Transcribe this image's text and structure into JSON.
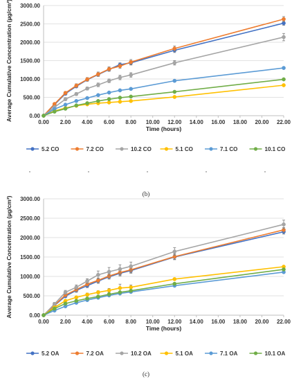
{
  "chart_data": [
    {
      "type": "line",
      "panel_label": "(b)",
      "xlabel": "Time (hours)",
      "ylabel": "Average Cumulative Concentration (µg/cm²)",
      "xlim": [
        0,
        22
      ],
      "ylim": [
        0,
        3000
      ],
      "x_ticks": [
        "0.00",
        "2.00",
        "4.00",
        "6.00",
        "8.00",
        "10.00",
        "12.00",
        "14.00",
        "16.00",
        "18.00",
        "20.00",
        "22.00"
      ],
      "y_ticks": [
        "0.00",
        "500.00",
        "1000.00",
        "1500.00",
        "2000.00",
        "2500.00",
        "3000.00"
      ],
      "grid": "horizontal",
      "legend_position": "bottom",
      "x": [
        0,
        1,
        2,
        3,
        4,
        5,
        6,
        7,
        8,
        12,
        22
      ],
      "series": [
        {
          "name": "5.2 CO",
          "color": "#4472c4",
          "values": [
            0,
            300,
            600,
            800,
            980,
            1120,
            1260,
            1390,
            1440,
            1780,
            2520
          ],
          "errors": [
            0,
            30,
            40,
            40,
            40,
            50,
            50,
            50,
            60,
            60,
            60
          ]
        },
        {
          "name": "7.2 CO",
          "color": "#ed7d31",
          "values": [
            0,
            320,
            620,
            820,
            990,
            1130,
            1270,
            1350,
            1460,
            1830,
            2630
          ],
          "errors": [
            0,
            30,
            40,
            50,
            50,
            60,
            60,
            60,
            70,
            70,
            70
          ]
        },
        {
          "name": "10.2 CO",
          "color": "#a5a5a5",
          "values": [
            0,
            230,
            450,
            590,
            740,
            840,
            950,
            1040,
            1110,
            1440,
            2140
          ],
          "errors": [
            0,
            30,
            40,
            40,
            40,
            50,
            50,
            60,
            60,
            60,
            100
          ]
        },
        {
          "name": "5.1 CO",
          "color": "#ffc000",
          "values": [
            0,
            130,
            210,
            270,
            310,
            340,
            360,
            380,
            400,
            510,
            830
          ],
          "errors": [
            0,
            15,
            20,
            20,
            20,
            20,
            20,
            20,
            20,
            20,
            20
          ]
        },
        {
          "name": "7.1 CO",
          "color": "#5b9bd5",
          "values": [
            0,
            180,
            300,
            400,
            480,
            560,
            630,
            690,
            730,
            950,
            1300
          ],
          "errors": [
            0,
            20,
            20,
            20,
            20,
            30,
            30,
            30,
            30,
            30,
            30
          ]
        },
        {
          "name": "10.1 CO",
          "color": "#70ad47",
          "values": [
            0,
            110,
            190,
            280,
            340,
            400,
            450,
            490,
            520,
            650,
            990
          ],
          "errors": [
            0,
            15,
            15,
            20,
            20,
            20,
            20,
            20,
            20,
            20,
            20
          ]
        }
      ]
    },
    {
      "type": "line",
      "panel_label": "(c)",
      "xlabel": "Time (hours)",
      "ylabel": "Average Cumulative Concentration (µg/cm²)",
      "xlim": [
        0,
        22
      ],
      "ylim": [
        0,
        3000
      ],
      "x_ticks": [
        "0.00",
        "2.00",
        "4.00",
        "6.00",
        "8.00",
        "10.00",
        "12.00",
        "14.00",
        "16.00",
        "18.00",
        "20.00",
        "22.00"
      ],
      "y_ticks": [
        "0.00",
        "500.00",
        "1000.00",
        "1500.00",
        "2000.00",
        "2500.00",
        "3000.00"
      ],
      "grid": "horizontal",
      "legend_position": "bottom",
      "x": [
        0,
        1,
        2,
        3,
        4,
        5,
        6,
        7,
        8,
        12,
        22
      ],
      "series": [
        {
          "name": "5.2 OA",
          "color": "#4472c4",
          "values": [
            0,
            250,
            490,
            640,
            760,
            880,
            990,
            1080,
            1150,
            1500,
            2150
          ],
          "errors": [
            0,
            30,
            40,
            50,
            50,
            60,
            60,
            70,
            70,
            70,
            60
          ]
        },
        {
          "name": "7.2 OA",
          "color": "#ed7d31",
          "values": [
            0,
            260,
            520,
            660,
            800,
            900,
            1010,
            1100,
            1170,
            1510,
            2200
          ],
          "errors": [
            0,
            30,
            40,
            50,
            50,
            60,
            60,
            70,
            70,
            70,
            60
          ]
        },
        {
          "name": "10.2 OA",
          "color": "#a5a5a5",
          "values": [
            0,
            290,
            590,
            720,
            880,
            1040,
            1120,
            1190,
            1260,
            1640,
            2340
          ],
          "errors": [
            0,
            40,
            50,
            60,
            60,
            100,
            110,
            110,
            110,
            100,
            110
          ]
        },
        {
          "name": "5.1 OA",
          "color": "#ffc000",
          "values": [
            0,
            200,
            370,
            460,
            530,
            590,
            640,
            700,
            720,
            930,
            1250
          ],
          "errors": [
            0,
            20,
            30,
            30,
            40,
            40,
            50,
            100,
            60,
            30,
            30
          ]
        },
        {
          "name": "7.1 OA",
          "color": "#5b9bd5",
          "values": [
            0,
            120,
            230,
            320,
            390,
            450,
            510,
            560,
            600,
            760,
            1110
          ],
          "errors": [
            0,
            15,
            20,
            20,
            20,
            20,
            20,
            20,
            20,
            20,
            30
          ]
        },
        {
          "name": "10.1 OA",
          "color": "#70ad47",
          "values": [
            0,
            170,
            300,
            370,
            430,
            480,
            540,
            590,
            630,
            810,
            1180
          ],
          "errors": [
            0,
            20,
            20,
            20,
            20,
            20,
            20,
            20,
            20,
            20,
            20
          ]
        }
      ]
    }
  ]
}
